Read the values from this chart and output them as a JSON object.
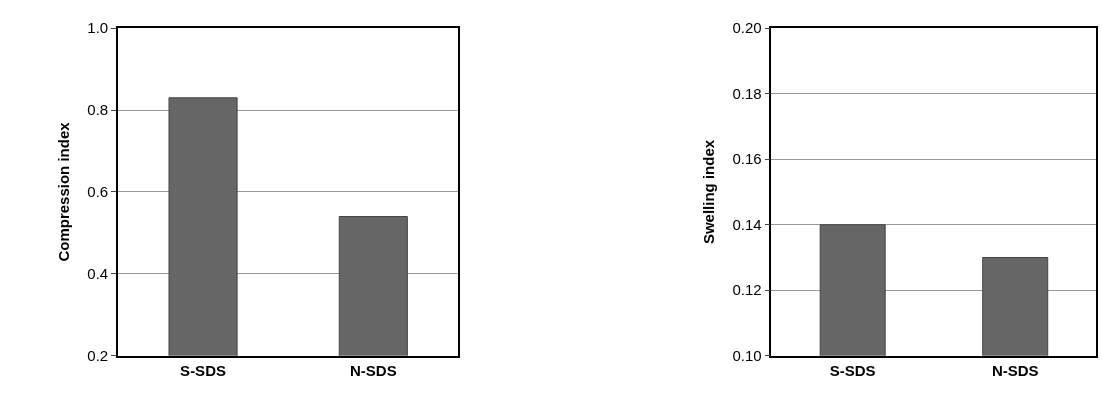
{
  "chart_data": [
    {
      "type": "bar",
      "ylabel": "Compression index",
      "categories": [
        "S-SDS",
        "N-SDS"
      ],
      "values": [
        0.83,
        0.54
      ],
      "color": "#666666",
      "ylim": [
        0.2,
        1.0
      ],
      "yticks": [
        0.2,
        0.4,
        0.6,
        0.8,
        {
          "value": 1.0,
          "label": "1.0"
        }
      ],
      "grid": "y"
    },
    {
      "type": "bar",
      "ylabel": "Swelling index",
      "categories": [
        "S-SDS",
        "N-SDS"
      ],
      "values": [
        0.14,
        0.13
      ],
      "color": "#666666",
      "ylim": [
        0.1,
        0.2
      ],
      "yticks": [
        {
          "value": 0.1,
          "label": "0.10"
        },
        0.12,
        0.14,
        0.16,
        0.18,
        {
          "value": 0.2,
          "label": "0.20"
        }
      ],
      "grid": "y"
    }
  ]
}
